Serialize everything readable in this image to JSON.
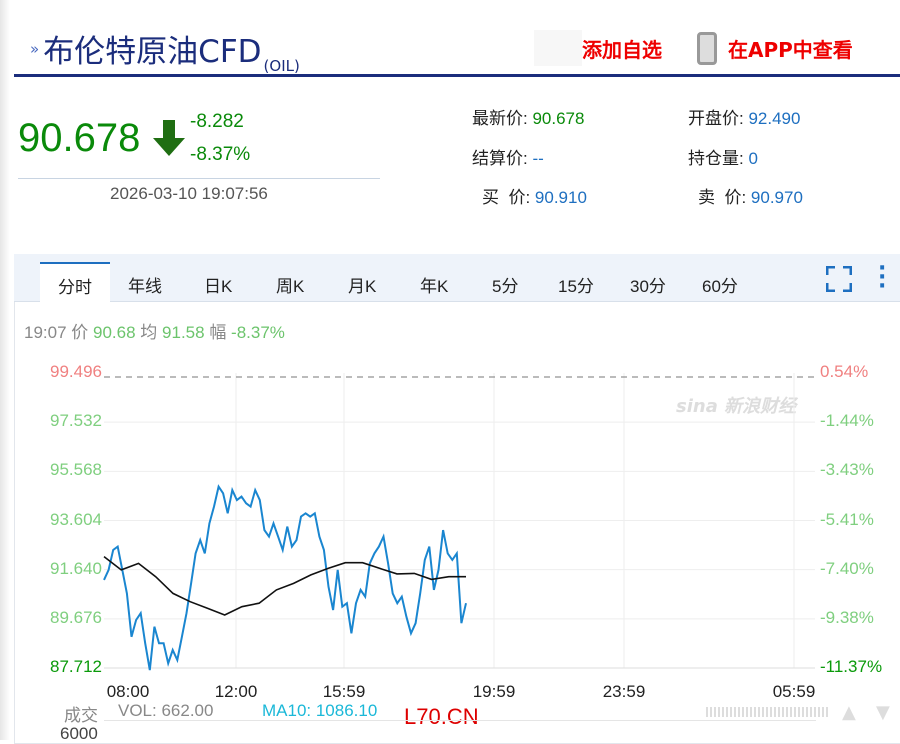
{
  "header": {
    "title": "布伦特原油CFD",
    "symbol": "(OIL)",
    "add_watchlist": "添加自选",
    "view_in_app": "在APP中查看"
  },
  "quote": {
    "price": "90.678",
    "change": "-8.282",
    "change_pct": "-8.37%",
    "datetime": "2026-03-10 19:07:56",
    "direction": "down",
    "fields": [
      {
        "label": "最新价:",
        "value": "90.678"
      },
      {
        "label": "开盘价:",
        "value": "92.490"
      },
      {
        "label": "结算价:",
        "value": "--"
      },
      {
        "label": "持仓量:",
        "value": "0"
      },
      {
        "label": "买  价:",
        "value": "90.910"
      },
      {
        "label": "卖  价:",
        "value": "90.970"
      }
    ]
  },
  "tabs": [
    "分时",
    "年线",
    "日K",
    "周K",
    "月K",
    "年K",
    "5分",
    "15分",
    "30分",
    "60分"
  ],
  "info": {
    "time": "19:07",
    "price_label": "价",
    "price": "90.68",
    "avg_label": "均",
    "avg": "91.58",
    "amp_label": "幅",
    "amp": "-8.37%"
  },
  "watermark": "sina新浪财经",
  "volume": {
    "label": "成交",
    "vol": "VOL: 662.00",
    "ma10": "MA10: 1086.10",
    "axis_top": "6000"
  },
  "overlay_text": "L70.CN",
  "colors": {
    "up": "#f08080",
    "down": "#0a8a0a",
    "line": "#1a86d0",
    "avg": "#111111",
    "accent": "#1b2d7c"
  },
  "chart_data": {
    "type": "line",
    "y_left_ticks": [
      "99.496",
      "97.532",
      "95.568",
      "93.604",
      "91.640",
      "89.676",
      "87.712"
    ],
    "y_right_ticks": [
      "0.54%",
      "-1.44%",
      "-3.43%",
      "-5.41%",
      "-7.40%",
      "-9.38%",
      "-11.37%"
    ],
    "ylim": [
      87.712,
      99.496
    ],
    "x_ticks": [
      "08:00",
      "12:00",
      "15:59",
      "19:59",
      "23:59",
      "05:59"
    ],
    "reference_price": 98.96,
    "series": [
      {
        "values": [
          91.23,
          91.63,
          92.43,
          92.56,
          91.63,
          90.69,
          88.96,
          89.63,
          89.9,
          88.7,
          87.63,
          89.36,
          88.7,
          88.7,
          87.9,
          88.43,
          88.03,
          88.96,
          89.9,
          91.09,
          92.29,
          92.82,
          92.29,
          93.49,
          94.16,
          94.96,
          94.69,
          93.89,
          94.82,
          94.42,
          94.56,
          94.29,
          94.16,
          94.82,
          94.42,
          93.22,
          92.96,
          93.49,
          92.96,
          92.43,
          93.36,
          92.56,
          92.82,
          93.76,
          93.89,
          93.76,
          93.89,
          92.96,
          92.43,
          90.96,
          90.03,
          91.63,
          90.16,
          90.3,
          89.1,
          90.3,
          90.83,
          90.56,
          91.89,
          92.29,
          92.56,
          92.96,
          91.89,
          90.69,
          90.3,
          90.56,
          89.76,
          89.1,
          89.5,
          90.69,
          92.03,
          92.56,
          90.83,
          91.63,
          93.22,
          92.29,
          92.03,
          92.29,
          89.5,
          90.3
        ]
      },
      {
        "values": [
          92.16,
          91.63,
          91.89,
          91.36,
          90.69,
          90.36,
          90.1,
          89.83,
          90.16,
          90.3,
          90.83,
          91.09,
          91.43,
          91.69,
          91.92,
          91.92,
          91.69,
          91.47,
          91.49,
          91.25,
          91.36,
          91.36
        ]
      }
    ]
  }
}
